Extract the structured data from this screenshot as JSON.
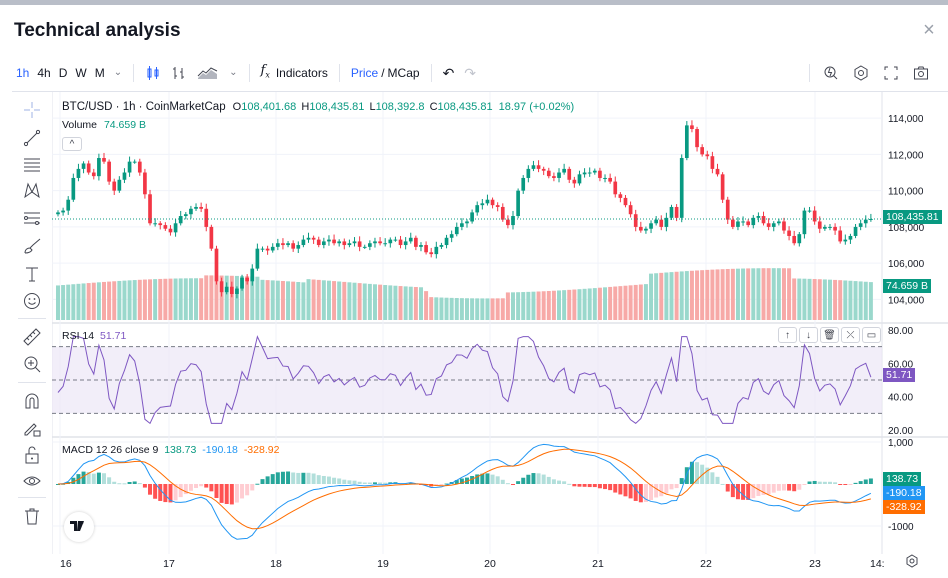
{
  "window": {
    "title": "Technical analysis",
    "close_label": "×"
  },
  "toolbar": {
    "timeframes": [
      {
        "label": "1h",
        "active": true
      },
      {
        "label": "4h",
        "active": false
      },
      {
        "label": "D",
        "active": false
      },
      {
        "label": "W",
        "active": false
      },
      {
        "label": "M",
        "active": false
      }
    ],
    "timeframe_more": "⌄",
    "chart_type_more": "⌄",
    "indicators_label": "Indicators",
    "indicators_icon": "fx",
    "price_label": "Price",
    "separator": "/",
    "mcap_label": "MCap",
    "undo_icon": "↶",
    "redo_icon": "↷"
  },
  "legend": {
    "symbol": "BTC/USD · 1h · CoinMarketCap",
    "open_label": "O",
    "open": "108,401.68",
    "high_label": "H",
    "high": "108,435.81",
    "low_label": "L",
    "low": "108,392.8",
    "close_label": "C",
    "close": "108,435.81",
    "change": "18.97 (+0.02%)",
    "volume_label": "Volume",
    "volume": "74.659 B",
    "collapse_icon": "^"
  },
  "rsi": {
    "label": "RSI 14",
    "value": "51.71",
    "axis": [
      "80.00",
      "60.00",
      "40.00",
      "20.00"
    ],
    "upper_band": 70,
    "middle_band": 50,
    "lower_band": 30,
    "buttons": [
      "↑",
      "↓",
      "🗑",
      "⤫",
      "▭"
    ]
  },
  "macd": {
    "label": "MACD 12 26 close 9",
    "histogram": "138.73",
    "macd_line": "-190.18",
    "signal_line": "-328.92",
    "axis": [
      "1,000",
      "-1000"
    ]
  },
  "price_axis": {
    "ticks": [
      "114,000",
      "112,000",
      "110,000",
      "108,000",
      "106,000",
      "104,000"
    ],
    "last_price": "108,435.81",
    "last_volume": "74.659 B",
    "rsi_tag": "51.71",
    "macd_hist_tag": "138.73",
    "macd_tag": "-190.18",
    "signal_tag": "-328.92"
  },
  "time_axis": {
    "ticks": [
      "16",
      "17",
      "18",
      "19",
      "20",
      "21",
      "22",
      "23"
    ],
    "right_label": "14:"
  },
  "colors": {
    "up": "#089981",
    "down": "#f23645",
    "vol_up": "#9ad8cc",
    "vol_down": "#f7a9a7",
    "rsi": "#7e57c2",
    "macd": "#2196f3",
    "signal": "#ff6d00",
    "accent": "#2962ff"
  },
  "chart_data": {
    "type": "candlestick",
    "title": "BTC/USD · 1h · CoinMarketCap",
    "price_range": [
      103000,
      115000
    ],
    "x_ticks": [
      "16",
      "17",
      "18",
      "19",
      "20",
      "21",
      "22",
      "23"
    ],
    "price_path": [
      108800,
      108900,
      109500,
      110700,
      111200,
      111500,
      111000,
      110800,
      111800,
      111600,
      110500,
      110000,
      110600,
      111000,
      111600,
      111600,
      111000,
      109800,
      108200,
      108200,
      108100,
      107900,
      107700,
      108200,
      108600,
      108700,
      109000,
      109100,
      109000,
      108000,
      106800,
      105000,
      104400,
      104700,
      104300,
      104600,
      105200,
      105000,
      105700,
      106800,
      106800,
      106700,
      106900,
      107100,
      107000,
      107100,
      106800,
      107000,
      107300,
      107400,
      107300,
      107000,
      107200,
      107300,
      107100,
      107200,
      107000,
      107100,
      107200,
      106900,
      106900,
      107100,
      107200,
      107100,
      107100,
      107300,
      107300,
      107000,
      107200,
      107400,
      106900,
      107000,
      106600,
      106500,
      106900,
      107000,
      107400,
      107600,
      108000,
      108200,
      108300,
      108800,
      109200,
      109300,
      109500,
      109200,
      109100,
      108400,
      108100,
      108600,
      110000,
      110700,
      111200,
      111400,
      111200,
      111100,
      110800,
      110700,
      111000,
      111200,
      110600,
      110400,
      110900,
      111000,
      111000,
      111100,
      110700,
      110700,
      110500,
      109800,
      109600,
      109200,
      108700,
      108000,
      107800,
      107900,
      108200,
      108400,
      108000,
      108500,
      109100,
      108500,
      111800,
      113600,
      113400,
      112400,
      112000,
      111900,
      111200,
      110900,
      109500,
      108400,
      108000,
      108300,
      108300,
      108100,
      108500,
      108600,
      108200,
      108000,
      108200,
      108300,
      107800,
      107500,
      107100,
      107600,
      108900,
      108900,
      108300,
      107900,
      108000,
      108000,
      107800,
      107200,
      107300,
      107500,
      108000,
      108200,
      108400,
      108436
    ],
    "volume_range_b": [
      0,
      140
    ],
    "rsi_range": [
      20,
      80
    ],
    "rsi_last": 51.71,
    "macd_last": -190.18,
    "signal_last": -328.92,
    "histogram_last": 138.73
  }
}
